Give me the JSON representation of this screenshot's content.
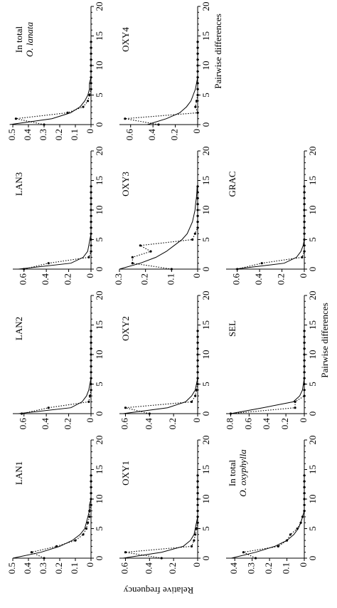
{
  "chart_data": [
    {
      "type": "line",
      "title": "LAN1",
      "x": [
        0,
        1,
        2,
        3,
        4,
        5,
        6,
        7,
        8,
        9,
        10,
        11,
        12,
        13,
        14
      ],
      "xlim": [
        0,
        20
      ],
      "xticks": [
        0,
        5,
        10,
        15,
        20
      ],
      "ylim": [
        0,
        0.5
      ],
      "yticks": [
        0,
        0.1,
        0.2,
        0.3,
        0.4,
        0.5
      ],
      "series": [
        {
          "style": "dotted",
          "color": "#000000",
          "values": [
            0.3,
            0.38,
            0.22,
            0.1,
            0.05,
            0.03,
            0.02,
            0.01,
            0.01,
            0,
            0,
            0,
            0,
            0,
            0
          ]
        },
        {
          "style": "solid",
          "color": "#000000",
          "values": [
            0.5,
            0.32,
            0.2,
            0.12,
            0.07,
            0.04,
            0.03,
            0.02,
            0.01,
            0.01,
            0,
            0,
            0,
            0,
            0
          ]
        }
      ]
    },
    {
      "type": "line",
      "title": "LAN2",
      "x": [
        0,
        1,
        2,
        3,
        4,
        5,
        6,
        7,
        8,
        9,
        10,
        11,
        12,
        13,
        14
      ],
      "xlim": [
        0,
        20
      ],
      "xticks": [
        0,
        5,
        10,
        15,
        20
      ],
      "ylim": [
        0,
        0.7
      ],
      "yticks": [
        0,
        0.2,
        0.4,
        0.6
      ],
      "series": [
        {
          "style": "dotted",
          "color": "#000000",
          "values": [
            0.62,
            0.38,
            0.02,
            0.01,
            0,
            0,
            0,
            0,
            0,
            0,
            0,
            0,
            0,
            0,
            0
          ]
        },
        {
          "style": "solid",
          "color": "#000000",
          "values": [
            0.65,
            0.18,
            0.08,
            0.04,
            0.02,
            0.01,
            0,
            0,
            0,
            0,
            0,
            0,
            0,
            0,
            0
          ]
        }
      ]
    },
    {
      "type": "line",
      "title": "LAN3",
      "x": [
        0,
        1,
        2,
        3,
        4,
        5,
        6,
        7,
        8,
        9,
        10,
        11,
        12,
        13,
        14
      ],
      "xlim": [
        0,
        20
      ],
      "xticks": [
        0,
        5,
        10,
        15,
        20
      ],
      "ylim": [
        0,
        0.7
      ],
      "yticks": [
        0,
        0.2,
        0.4,
        0.6
      ],
      "series": [
        {
          "style": "dotted",
          "color": "#000000",
          "values": [
            0.6,
            0.38,
            0.02,
            0,
            0,
            0,
            0,
            0,
            0,
            0,
            0,
            0,
            0,
            0,
            0
          ]
        },
        {
          "style": "solid",
          "color": "#000000",
          "values": [
            0.65,
            0.18,
            0.07,
            0.03,
            0.02,
            0.01,
            0,
            0,
            0,
            0,
            0,
            0,
            0,
            0,
            0
          ]
        }
      ]
    },
    {
      "type": "line",
      "title": "In total",
      "subtitle": "O. lanata",
      "x": [
        0,
        1,
        2,
        3,
        4,
        5,
        6,
        7,
        8,
        9,
        10,
        11,
        12,
        13,
        14
      ],
      "xlim": [
        0,
        20
      ],
      "xticks": [
        0,
        5,
        10,
        15,
        20
      ],
      "ylim": [
        0,
        0.5
      ],
      "yticks": [
        0,
        0.1,
        0.2,
        0.3,
        0.4,
        0.5
      ],
      "series": [
        {
          "style": "dotted",
          "color": "#000000",
          "values": [
            0.3,
            0.48,
            0.15,
            0.05,
            0.02,
            0.01,
            0,
            0,
            0,
            0,
            0,
            0,
            0,
            0,
            0
          ]
        },
        {
          "style": "solid",
          "color": "#000000",
          "values": [
            0.52,
            0.25,
            0.13,
            0.07,
            0.04,
            0.02,
            0.01,
            0.01,
            0,
            0,
            0,
            0,
            0,
            0,
            0
          ]
        }
      ]
    },
    {
      "type": "line",
      "title": "OXY1",
      "ylabel": "Relative frequency",
      "x": [
        0,
        1,
        2,
        3,
        4,
        5,
        6,
        7,
        8,
        9,
        10,
        11,
        12,
        13,
        14
      ],
      "xlim": [
        0,
        20
      ],
      "xticks": [
        0,
        5,
        10,
        15,
        20
      ],
      "ylim": [
        0,
        0.65
      ],
      "yticks": [
        0,
        0.2,
        0.4,
        0.6
      ],
      "series": [
        {
          "style": "dotted",
          "color": "#000000",
          "values": [
            0.3,
            0.6,
            0.05,
            0.03,
            0.02,
            0.01,
            0,
            0,
            0,
            0,
            0,
            0,
            0,
            0,
            0
          ]
        },
        {
          "style": "solid",
          "color": "#000000",
          "values": [
            0.62,
            0.3,
            0.12,
            0.06,
            0.03,
            0.02,
            0.01,
            0,
            0,
            0,
            0,
            0,
            0,
            0,
            0
          ]
        }
      ]
    },
    {
      "type": "line",
      "title": "OXY2",
      "x": [
        0,
        1,
        2,
        3,
        4,
        5,
        6,
        7,
        8,
        9,
        10,
        11,
        12,
        13,
        14
      ],
      "xlim": [
        0,
        20
      ],
      "xticks": [
        0,
        5,
        10,
        15,
        20
      ],
      "ylim": [
        0,
        0.65
      ],
      "yticks": [
        0,
        0.2,
        0.4,
        0.6
      ],
      "series": [
        {
          "style": "dotted",
          "color": "#000000",
          "values": [
            0.4,
            0.6,
            0.05,
            0.02,
            0.01,
            0,
            0,
            0,
            0,
            0,
            0,
            0,
            0,
            0,
            0
          ]
        },
        {
          "style": "solid",
          "color": "#000000",
          "values": [
            0.62,
            0.25,
            0.1,
            0.05,
            0.02,
            0.01,
            0,
            0,
            0,
            0,
            0,
            0,
            0,
            0,
            0
          ]
        }
      ]
    },
    {
      "type": "line",
      "title": "OXY3",
      "x": [
        0,
        1,
        2,
        3,
        4,
        5,
        6,
        7,
        8,
        9,
        10,
        11,
        12,
        13,
        14
      ],
      "xlim": [
        0,
        20
      ],
      "xticks": [
        0,
        5,
        10,
        15,
        20
      ],
      "ylim": [
        0,
        0.3
      ],
      "yticks": [
        0,
        0.1,
        0.2,
        0.3
      ],
      "series": [
        {
          "style": "dotted",
          "color": "#000000",
          "values": [
            0.1,
            0.25,
            0.25,
            0.18,
            0.22,
            0.02,
            0.01,
            0,
            0,
            0,
            0,
            0,
            0,
            0,
            0
          ]
        },
        {
          "style": "solid",
          "color": "#000000",
          "values": [
            0.3,
            0.22,
            0.16,
            0.12,
            0.09,
            0.06,
            0.04,
            0.03,
            0.02,
            0.015,
            0.01,
            0.008,
            0.005,
            0.003,
            0.002
          ]
        }
      ]
    },
    {
      "type": "line",
      "title": "OXY4",
      "xlabel": "Pairwise differences",
      "x": [
        0,
        1,
        2,
        3,
        4,
        5,
        6,
        7,
        8,
        9,
        10,
        11,
        12,
        13,
        14
      ],
      "xlim": [
        0,
        20
      ],
      "xticks": [
        0,
        5,
        10,
        15,
        20
      ],
      "ylim": [
        0,
        0.7
      ],
      "yticks": [
        0,
        0.2,
        0.4,
        0.6
      ],
      "series": [
        {
          "style": "dotted",
          "color": "#000000",
          "values": [
            0.35,
            0.65,
            0,
            0.02,
            0.01,
            0,
            0,
            0,
            0,
            0,
            0,
            0,
            0,
            0,
            0
          ]
        },
        {
          "style": "solid",
          "color": "#000000",
          "values": [
            0.45,
            0.28,
            0.16,
            0.1,
            0.06,
            0.04,
            0.02,
            0.01,
            0,
            0,
            0,
            0,
            0,
            0,
            0
          ]
        }
      ]
    },
    {
      "type": "line",
      "title": "In total",
      "subtitle": "O. oxyphylla",
      "x": [
        0,
        1,
        2,
        3,
        4,
        5,
        6,
        7,
        8,
        9,
        10,
        11,
        12,
        13,
        14
      ],
      "xlim": [
        0,
        20
      ],
      "xticks": [
        0,
        5,
        10,
        15,
        20
      ],
      "ylim": [
        0,
        0.45
      ],
      "yticks": [
        0,
        0.1,
        0.2,
        0.3,
        0.4
      ],
      "series": [
        {
          "style": "dotted",
          "color": "#000000",
          "values": [
            0.28,
            0.35,
            0.15,
            0.1,
            0.08,
            0.04,
            0.02,
            0.01,
            0,
            0,
            0,
            0,
            0,
            0,
            0
          ]
        },
        {
          "style": "solid",
          "color": "#000000",
          "values": [
            0.42,
            0.28,
            0.17,
            0.1,
            0.06,
            0.035,
            0.02,
            0.01,
            0,
            0,
            0,
            0,
            0,
            0,
            0
          ]
        }
      ]
    },
    {
      "type": "line",
      "title": "SEL",
      "xlabel": "Pairwise differences",
      "x": [
        0,
        1,
        2,
        3,
        4,
        5,
        6,
        7,
        8,
        9,
        10,
        11,
        12,
        13,
        14
      ],
      "xlim": [
        0,
        20
      ],
      "xticks": [
        0,
        5,
        10,
        15,
        20
      ],
      "ylim": [
        0,
        0.85
      ],
      "yticks": [
        0,
        0.2,
        0.4,
        0.6,
        0.8
      ],
      "series": [
        {
          "style": "dotted",
          "color": "#000000",
          "values": [
            0.8,
            0.1,
            0.1,
            0,
            0,
            0,
            0,
            0,
            0,
            0,
            0,
            0,
            0,
            0,
            0
          ]
        },
        {
          "style": "solid",
          "color": "#000000",
          "values": [
            0.8,
            0.45,
            0.12,
            0.05,
            0.02,
            0.01,
            0,
            0,
            0,
            0,
            0,
            0,
            0,
            0,
            0
          ]
        }
      ]
    },
    {
      "type": "line",
      "title": "GRAC",
      "x": [
        0,
        1,
        2,
        3,
        4,
        5,
        6,
        7,
        8,
        9,
        10,
        11,
        12,
        13,
        14
      ],
      "xlim": [
        0,
        20
      ],
      "xticks": [
        0,
        5,
        10,
        15,
        20
      ],
      "ylim": [
        0,
        0.7
      ],
      "yticks": [
        0,
        0.2,
        0.4,
        0.6
      ],
      "series": [
        {
          "style": "dotted",
          "color": "#000000",
          "values": [
            0.6,
            0.38,
            0.02,
            0,
            0,
            0,
            0,
            0,
            0,
            0,
            0,
            0,
            0,
            0,
            0
          ]
        },
        {
          "style": "solid",
          "color": "#000000",
          "values": [
            0.62,
            0.18,
            0.07,
            0.03,
            0.01,
            0,
            0,
            0,
            0,
            0,
            0,
            0,
            0,
            0,
            0
          ]
        }
      ]
    }
  ]
}
